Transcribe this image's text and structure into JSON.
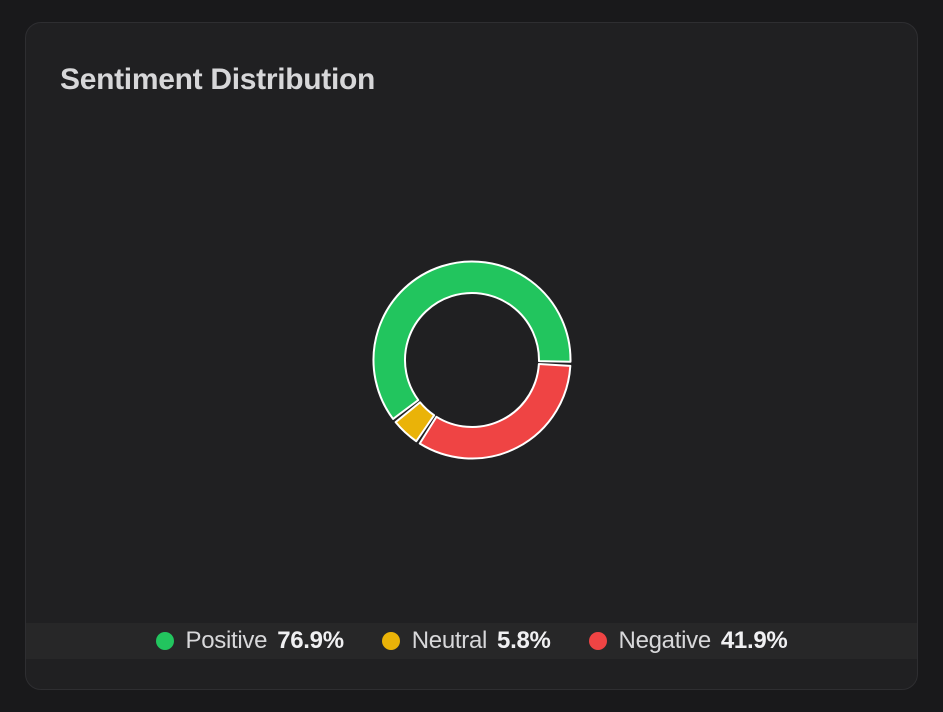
{
  "page": {
    "background_color": "#19191b"
  },
  "card": {
    "background_color": "#202022",
    "border_color": "#2e2e31",
    "legend_strip_color": "rgba(255,255,255,0.03)"
  },
  "chart_data": {
    "type": "pie",
    "variant": "donut",
    "title": "Sentiment Distribution",
    "legend_position": "bottom",
    "stroke_color": "#ffffff",
    "series": [
      {
        "label": "Positive",
        "value": 76.9,
        "value_label": "76.9%",
        "color": "#22c55e"
      },
      {
        "label": "Neutral",
        "value": 5.8,
        "value_label": "5.8%",
        "color": "#eab308"
      },
      {
        "label": "Negative",
        "value": 41.9,
        "value_label": "41.9%",
        "color": "#ef4444"
      }
    ]
  }
}
